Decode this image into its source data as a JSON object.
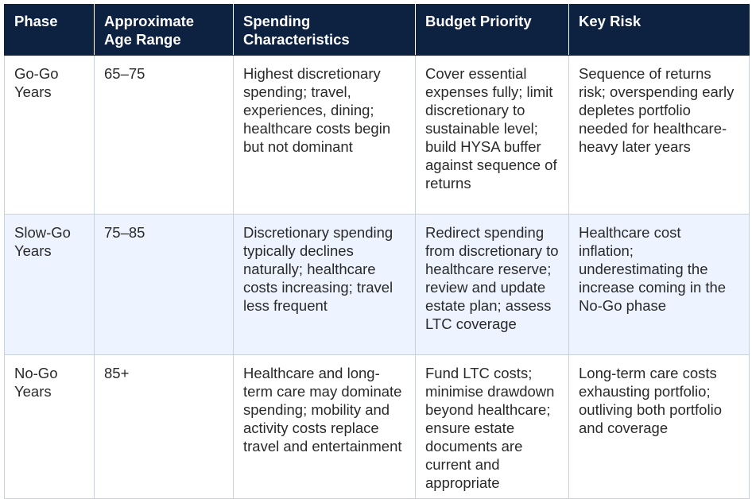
{
  "table": {
    "headers": [
      "Phase",
      "Approximate Age Range",
      "Spending Characteristics",
      "Budget Priority",
      "Key Risk"
    ],
    "rows": [
      [
        "Go-Go Years",
        "65–75",
        "Highest discretionary spending; travel, experiences, dining; healthcare costs begin but not dominant",
        "Cover essential expenses fully; limit discretionary to sustainable level; build HYSA buffer against sequence of returns",
        "Sequence of returns risk; overspending early depletes portfolio needed for healthcare-heavy later years"
      ],
      [
        "Slow-Go Years",
        "75–85",
        "Discretionary spending typically declines naturally; healthcare costs increasing; travel less frequent",
        "Redirect spending from discretionary to healthcare reserve; review and update estate plan; assess LTC coverage",
        "Healthcare cost inflation; underestimating the increase coming in the No-Go phase"
      ],
      [
        "No-Go Years",
        "85+",
        "Healthcare and long-term care may dominate spending; mobility and activity costs replace travel and entertainment",
        "Fund LTC costs; minimise drawdown beyond healthcare; ensure estate documents are current and appropriate",
        "Long-term care costs exhausting portfolio; outliving both portfolio and coverage"
      ]
    ]
  },
  "colors": {
    "header_bg": "#0d2140",
    "header_text": "#ffffff",
    "row_alt_bg": "#edf3ff",
    "border": "#c9d1dc"
  }
}
